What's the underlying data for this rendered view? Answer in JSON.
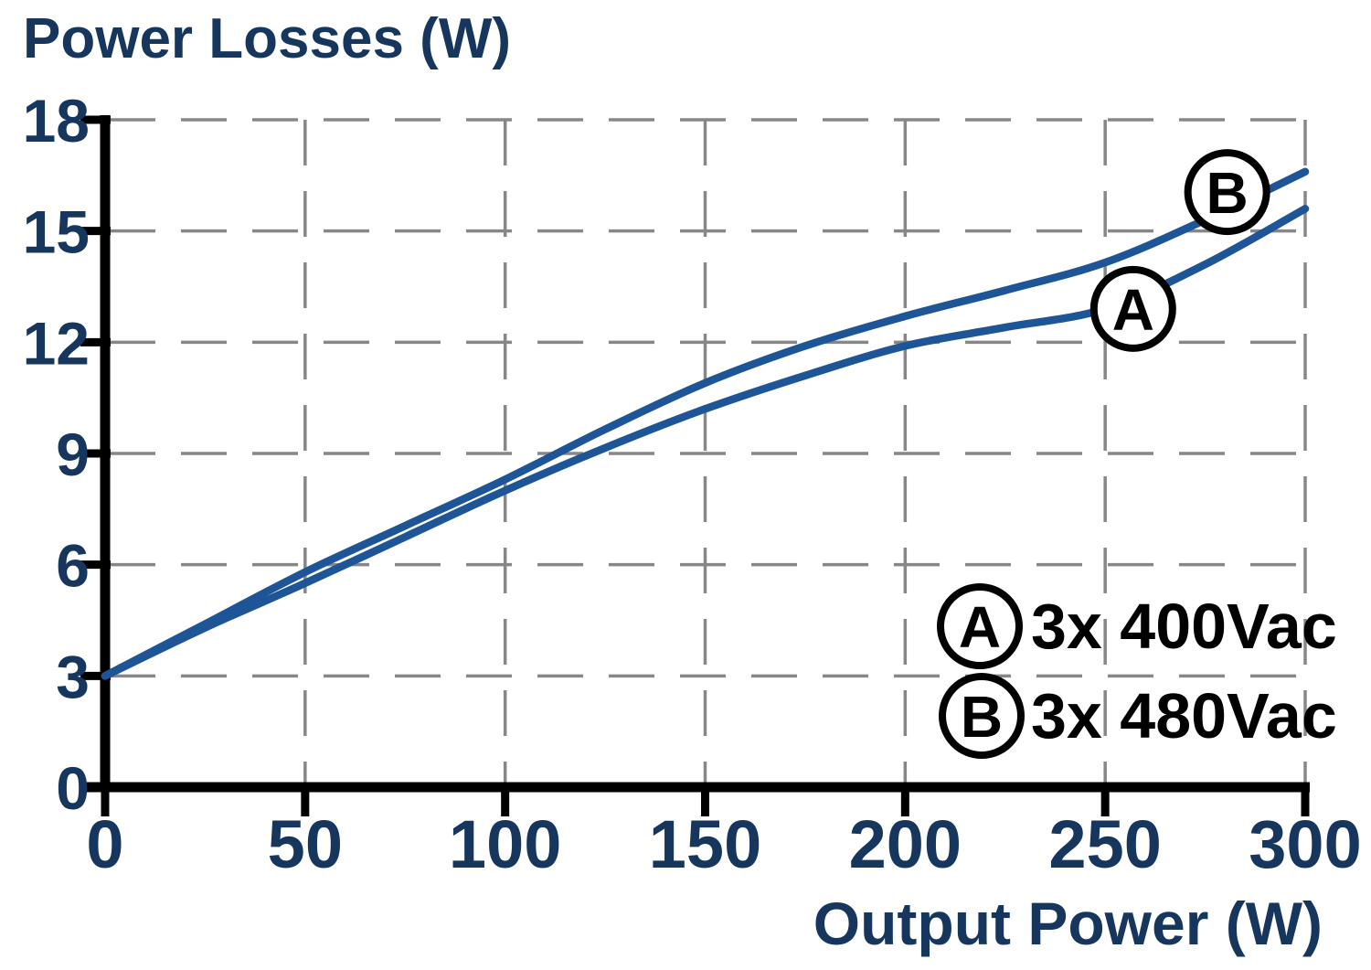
{
  "chart_data": {
    "type": "line",
    "title": "Power Losses (W)",
    "xlabel": "Output Power (W)",
    "ylabel": "Power Losses (W)",
    "xlim": [
      0,
      300
    ],
    "ylim": [
      0,
      18
    ],
    "x_ticks": [
      0,
      50,
      100,
      150,
      200,
      250,
      300
    ],
    "y_ticks": [
      0,
      3,
      6,
      9,
      12,
      15,
      18
    ],
    "grid": "dashed-both-directions",
    "legend_position": "inside-lower-right",
    "x": [
      0,
      25,
      50,
      75,
      100,
      125,
      150,
      175,
      200,
      225,
      250,
      275,
      300
    ],
    "series": [
      {
        "name": "A",
        "label": "3x 400Vac",
        "values": [
          3.0,
          4.3,
          5.5,
          6.75,
          8.0,
          9.15,
          10.2,
          11.1,
          11.9,
          12.4,
          12.9,
          14.1,
          15.6
        ]
      },
      {
        "name": "B",
        "label": "3x 480Vac",
        "values": [
          3.0,
          4.4,
          5.8,
          7.05,
          8.3,
          9.65,
          10.9,
          11.9,
          12.7,
          13.4,
          14.15,
          15.3,
          16.6
        ]
      }
    ],
    "curve_labels": [
      {
        "label": "B",
        "x": 280.5,
        "y": 16.05
      },
      {
        "label": "A",
        "x": 257.0,
        "y": 12.9
      }
    ],
    "colors": {
      "curve": "#1e5596",
      "axis": "#000000",
      "grid": "#878787",
      "tick_text": "#17365d",
      "title_text": "#17365d",
      "legend_text": "#000000",
      "marker_circle": "#000000"
    }
  }
}
